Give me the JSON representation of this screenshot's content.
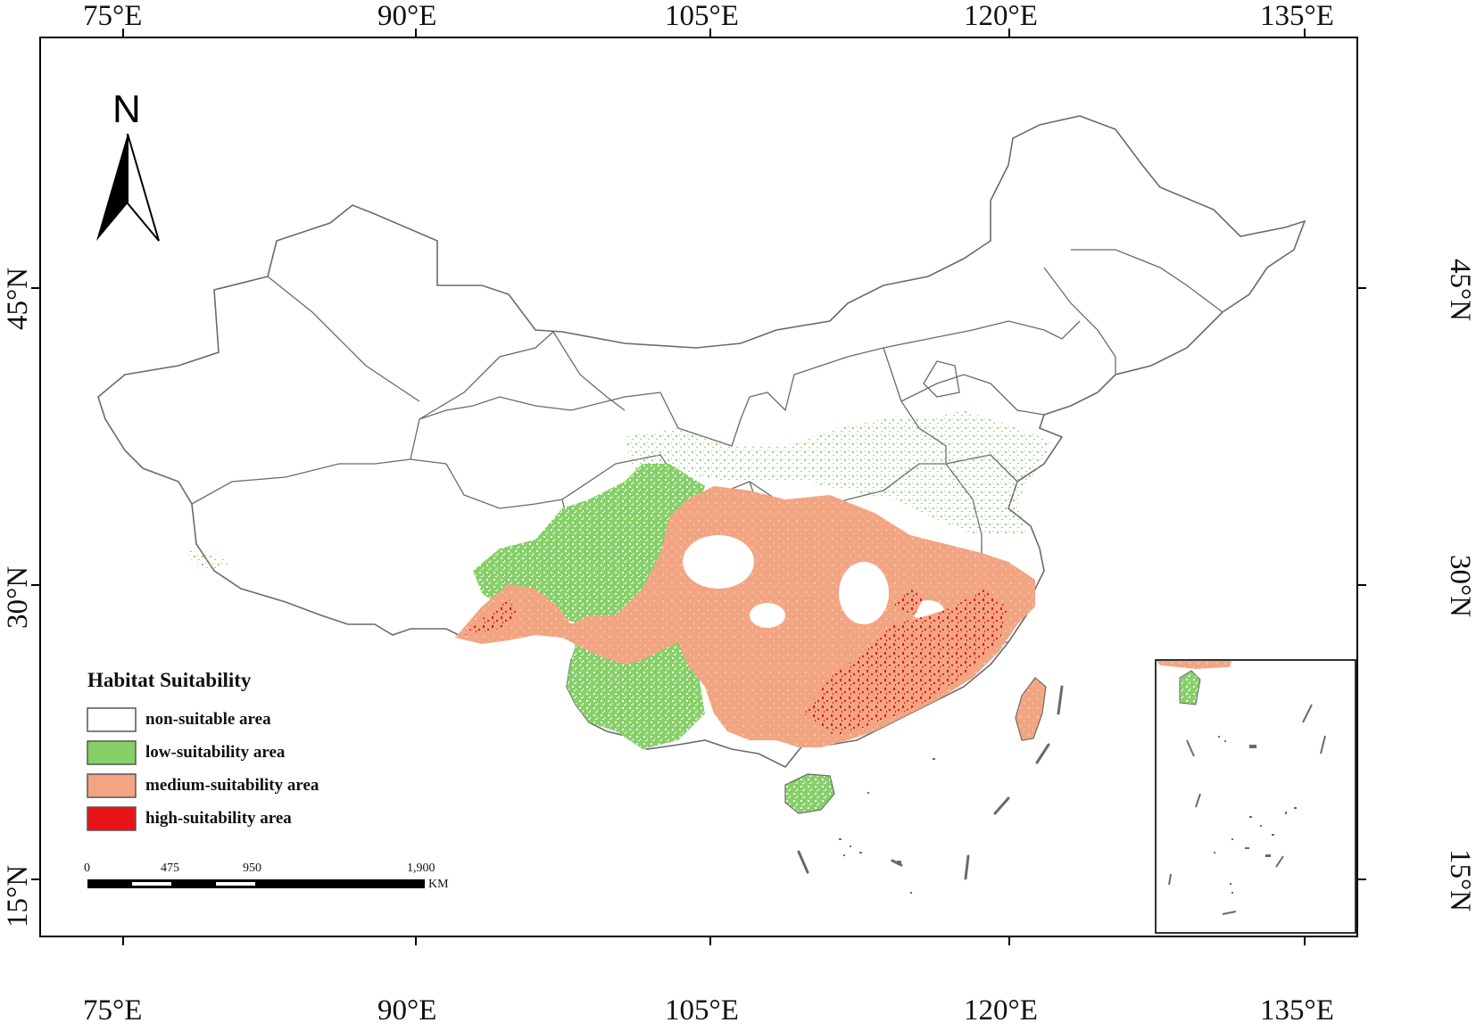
{
  "map": {
    "longitude_labels": [
      "75°E",
      "90°E",
      "105°E",
      "120°E",
      "135°E"
    ],
    "latitude_labels": [
      "45°N",
      "30°N",
      "15°N"
    ],
    "north_arrow": {
      "letter": "N",
      "icon": "north-arrow-icon"
    },
    "legend": {
      "title": "Habitat Suitability",
      "items": [
        {
          "label": "non-suitable area",
          "color": "#ffffff"
        },
        {
          "label": "low-suitability area",
          "color": "#86d068"
        },
        {
          "label": "medium-suitability area",
          "color": "#f2a582"
        },
        {
          "label": "high-suitability area",
          "color": "#e8141a"
        }
      ]
    },
    "scale_bar": {
      "ticks": [
        "0",
        "475",
        "950",
        "1,900"
      ],
      "unit": "KM"
    },
    "colors": {
      "border": "#6a6a6a",
      "low": "#86d068",
      "medium": "#f2a582",
      "high": "#e8141a"
    }
  }
}
